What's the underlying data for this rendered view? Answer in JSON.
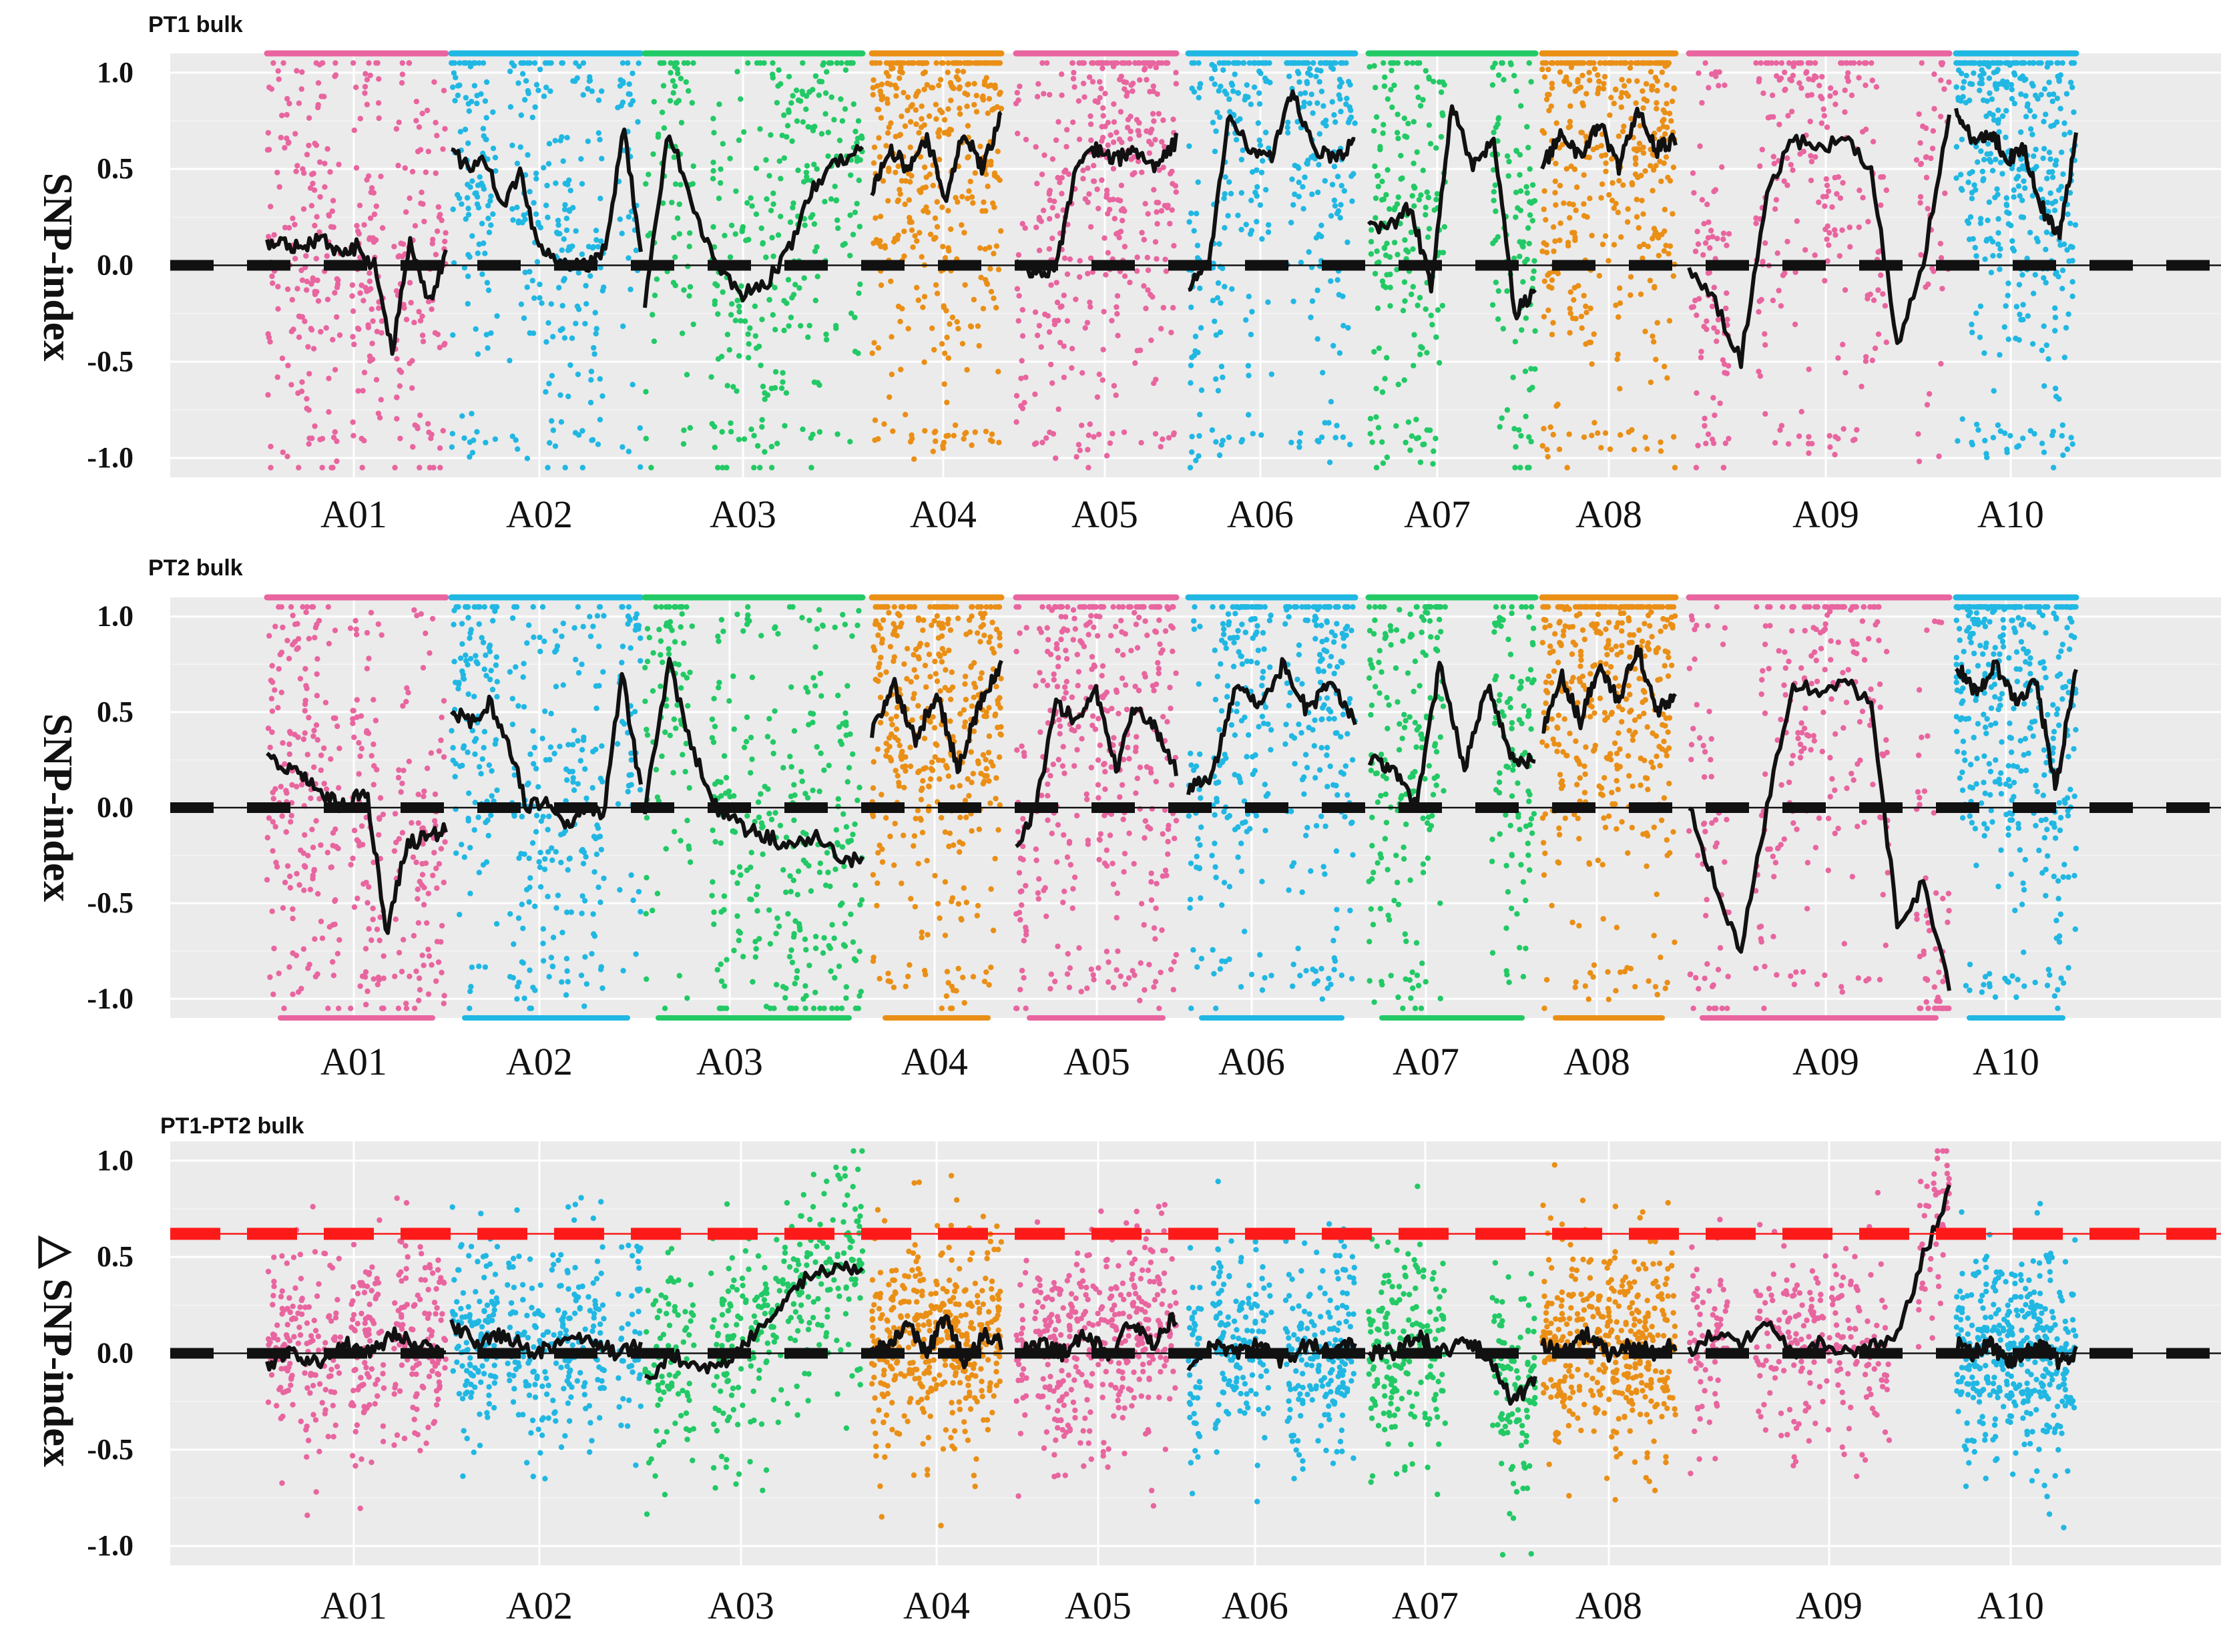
{
  "chart_data": [
    {
      "type": "scatter",
      "title": "PT1 bulk",
      "ylabel": "SNP-index",
      "ylim": [
        -1.1,
        1.1
      ],
      "yticks": [
        "1.0",
        "0.5",
        "0.0",
        "-0.5",
        "-1.0"
      ],
      "categories": [
        "A01",
        "A02",
        "A03",
        "A04",
        "A05",
        "A06",
        "A07",
        "A08",
        "A09",
        "A10"
      ],
      "reference_lines": [
        {
          "y": 0.0,
          "color": "#111111",
          "style": "dashed"
        }
      ],
      "series": [
        {
          "name": "A01",
          "color": "#e8659f",
          "trend": [
            0.1,
            0.12,
            0.08,
            0.15,
            0.05,
            0.1,
            0.0,
            -0.45,
            0.15,
            -0.2,
            0.05
          ]
        },
        {
          "name": "A02",
          "color": "#21b7e3",
          "trend": [
            0.6,
            0.5,
            0.55,
            0.3,
            0.5,
            0.1,
            0.05,
            0.0,
            0.0,
            0.1,
            0.7,
            0.1
          ]
        },
        {
          "name": "A03",
          "color": "#22c965",
          "trend": [
            -0.2,
            0.7,
            0.3,
            0.0,
            -0.15,
            -0.1,
            0.1,
            0.4,
            0.55,
            0.6
          ]
        },
        {
          "name": "A04",
          "color": "#ea8f16",
          "trend": [
            0.4,
            0.6,
            0.5,
            0.65,
            0.35,
            0.7,
            0.5,
            0.8
          ]
        },
        {
          "name": "A05",
          "color": "#e8659f",
          "trend": [
            0.05,
            -0.05,
            0.0,
            0.5,
            0.6,
            0.55,
            0.6,
            0.5,
            0.65
          ]
        },
        {
          "name": "A06",
          "color": "#21b7e3",
          "trend": [
            -0.1,
            0.0,
            0.8,
            0.6,
            0.55,
            0.9,
            0.6,
            0.55,
            0.65
          ]
        },
        {
          "name": "A07",
          "color": "#22c965",
          "trend": [
            0.2,
            0.2,
            0.3,
            -0.1,
            0.85,
            0.5,
            0.65,
            -0.25,
            -0.15
          ]
        },
        {
          "name": "A08",
          "color": "#ea8f16",
          "trend": [
            0.5,
            0.7,
            0.55,
            0.75,
            0.5,
            0.8,
            0.6,
            0.65
          ]
        },
        {
          "name": "A09",
          "color": "#e8659f",
          "trend": [
            0.0,
            -0.2,
            -0.5,
            0.4,
            0.65,
            0.6,
            0.65,
            0.5,
            -0.4,
            0.0,
            0.8
          ]
        },
        {
          "name": "A10",
          "color": "#21b7e3",
          "trend": [
            0.8,
            0.65,
            0.7,
            0.55,
            0.6,
            0.3,
            0.15,
            0.65
          ]
        }
      ]
    },
    {
      "type": "scatter",
      "title": "PT2 bulk",
      "ylabel": "SNP-index",
      "ylim": [
        -1.1,
        1.1
      ],
      "yticks": [
        "1.0",
        "0.5",
        "0.0",
        "-0.5",
        "-1.0"
      ],
      "categories": [
        "A01",
        "A02",
        "A03",
        "A04",
        "A05",
        "A06",
        "A07",
        "A08",
        "A09",
        "A10"
      ],
      "reference_lines": [
        {
          "y": 0.0,
          "color": "#111111",
          "style": "dashed"
        }
      ],
      "series": [
        {
          "name": "A01",
          "color": "#e8659f",
          "trend": [
            0.25,
            0.2,
            0.15,
            0.05,
            0.0,
            0.1,
            -0.65,
            -0.2,
            -0.15,
            -0.12
          ]
        },
        {
          "name": "A02",
          "color": "#21b7e3",
          "trend": [
            0.5,
            0.45,
            0.55,
            0.35,
            0.0,
            0.05,
            -0.1,
            0.0,
            -0.05,
            0.7,
            0.1
          ]
        },
        {
          "name": "A03",
          "color": "#22c965",
          "trend": [
            0.0,
            0.75,
            0.3,
            0.0,
            -0.1,
            -0.15,
            -0.2,
            -0.15,
            -0.25,
            -0.28
          ]
        },
        {
          "name": "A04",
          "color": "#ea8f16",
          "trend": [
            0.4,
            0.65,
            0.35,
            0.6,
            0.2,
            0.55,
            0.75
          ]
        },
        {
          "name": "A05",
          "color": "#e8659f",
          "trend": [
            -0.2,
            0.0,
            0.55,
            0.45,
            0.6,
            0.2,
            0.55,
            0.4,
            0.2
          ]
        },
        {
          "name": "A06",
          "color": "#21b7e3",
          "trend": [
            0.1,
            0.15,
            0.65,
            0.55,
            0.75,
            0.5,
            0.65,
            0.45
          ]
        },
        {
          "name": "A07",
          "color": "#22c965",
          "trend": [
            0.25,
            0.2,
            0.0,
            0.75,
            0.2,
            0.65,
            0.25,
            0.25
          ]
        },
        {
          "name": "A08",
          "color": "#ea8f16",
          "trend": [
            0.4,
            0.7,
            0.45,
            0.75,
            0.55,
            0.85,
            0.5,
            0.6
          ]
        },
        {
          "name": "A09",
          "color": "#e8659f",
          "trend": [
            0.0,
            -0.4,
            -0.75,
            0.0,
            0.65,
            0.6,
            0.65,
            0.55,
            -0.6,
            -0.4,
            -0.95
          ]
        },
        {
          "name": "A10",
          "color": "#21b7e3",
          "trend": [
            0.75,
            0.6,
            0.75,
            0.55,
            0.65,
            0.1,
            0.75
          ]
        }
      ]
    },
    {
      "type": "scatter",
      "title": "PT1-PT2 bulk",
      "ylabel": "△ SNP-index",
      "ylim": [
        -1.1,
        1.1
      ],
      "yticks": [
        "1.0",
        "0.5",
        "0.0",
        "-0.5",
        "-1.0"
      ],
      "categories": [
        "A01",
        "A02",
        "A03",
        "A04",
        "A05",
        "A06",
        "A07",
        "A08",
        "A09",
        "A10"
      ],
      "reference_lines": [
        {
          "y": 0.0,
          "color": "#111111",
          "style": "dashed"
        },
        {
          "y": 0.62,
          "color": "#ff1a1a",
          "style": "dashed"
        }
      ],
      "series": [
        {
          "name": "A01",
          "color": "#e8659f",
          "trend": [
            -0.05,
            0.0,
            -0.05,
            0.05,
            0.0,
            0.1,
            0.05,
            0.0
          ]
        },
        {
          "name": "A02",
          "color": "#21b7e3",
          "trend": [
            0.15,
            0.05,
            0.1,
            0.0,
            0.05,
            0.1,
            0.0,
            0.05
          ]
        },
        {
          "name": "A03",
          "color": "#22c965",
          "trend": [
            -0.15,
            0.0,
            -0.1,
            -0.05,
            0.1,
            0.25,
            0.4,
            0.45,
            0.45
          ]
        },
        {
          "name": "A04",
          "color": "#ea8f16",
          "trend": [
            0.0,
            0.05,
            0.15,
            0.0,
            0.2,
            -0.05,
            0.1,
            0.05
          ]
        },
        {
          "name": "A05",
          "color": "#e8659f",
          "trend": [
            0.0,
            0.05,
            0.0,
            0.1,
            0.0,
            0.15,
            0.05,
            0.2
          ]
        },
        {
          "name": "A06",
          "color": "#21b7e3",
          "trend": [
            -0.1,
            0.05,
            0.0,
            0.05,
            -0.05,
            0.05,
            0.0,
            0.05
          ]
        },
        {
          "name": "A07",
          "color": "#22c965",
          "trend": [
            0.0,
            0.0,
            0.1,
            0.0,
            0.05,
            0.0,
            -0.25,
            -0.15
          ]
        },
        {
          "name": "A08",
          "color": "#ea8f16",
          "trend": [
            0.05,
            0.0,
            0.1,
            0.0,
            0.05,
            0.0,
            0.05
          ]
        },
        {
          "name": "A09",
          "color": "#e8659f",
          "trend": [
            0.0,
            0.1,
            0.05,
            0.15,
            0.0,
            0.05,
            0.0,
            0.05,
            0.1,
            0.5,
            0.85
          ]
        },
        {
          "name": "A10",
          "color": "#21b7e3",
          "trend": [
            0.05,
            0.0,
            0.05,
            -0.05,
            0.0,
            0.05,
            -0.05,
            0.0
          ]
        }
      ]
    }
  ]
}
